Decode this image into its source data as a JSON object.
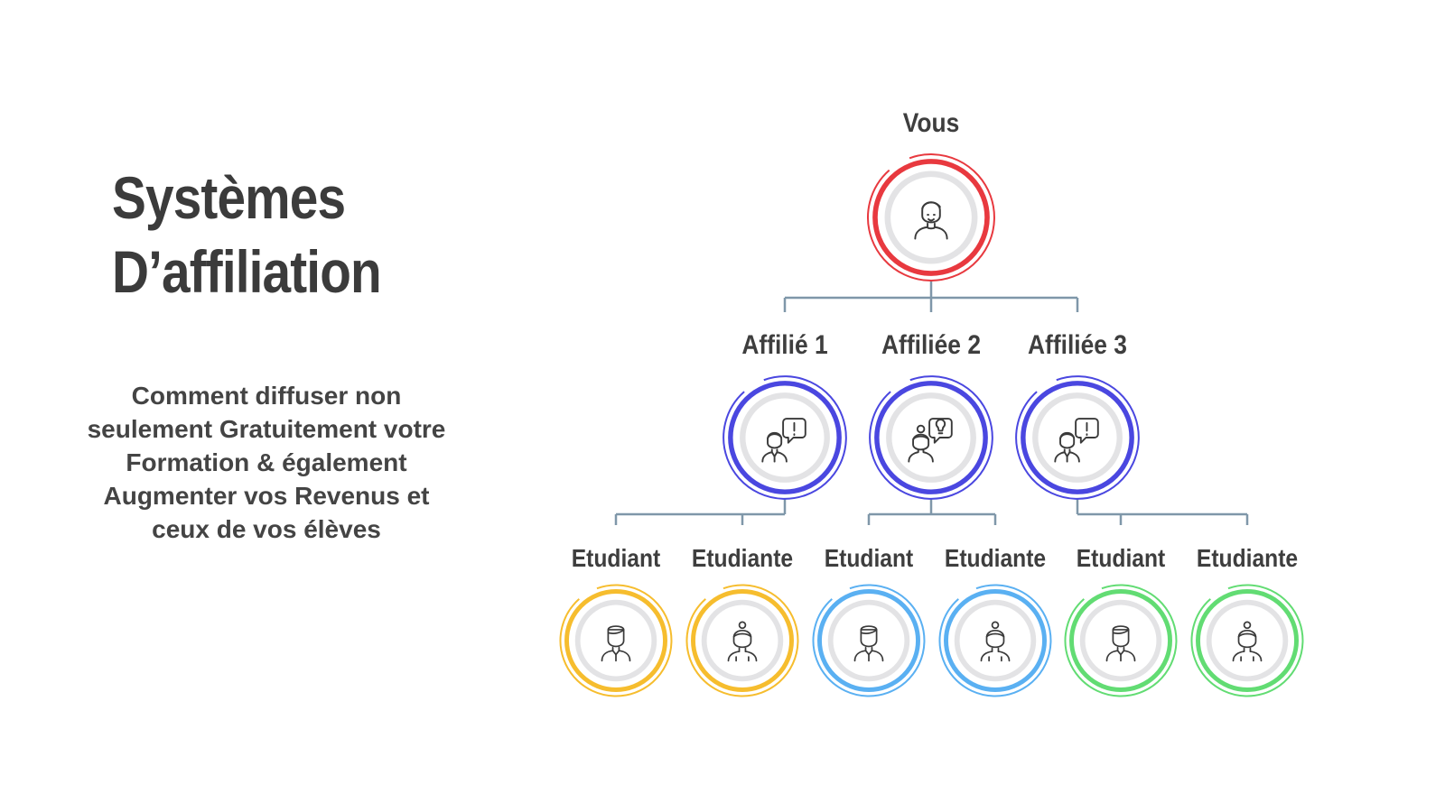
{
  "heading": {
    "title_line1": "Systèmes",
    "title_line2": "D’affiliation",
    "subtitle_lines": [
      "Comment diffuser non",
      "seulement Gratuitement votre",
      "Formation & également",
      "Augmenter vos Revenus et",
      "ceux de vos élèves"
    ]
  },
  "tree": {
    "root": {
      "label": "Vous",
      "color": "#e8393f",
      "icon": "man-icon"
    },
    "affiliates": [
      {
        "label": "Affilié 1",
        "color": "#4a47e0",
        "icon": "man-speech-exclamation-icon"
      },
      {
        "label": "Affiliée 2",
        "color": "#4a47e0",
        "icon": "woman-speech-lightbulb-icon"
      },
      {
        "label": "Affiliée 3",
        "color": "#4a47e0",
        "icon": "man-speech-exclamation-icon"
      }
    ],
    "students": [
      {
        "label": "Etudiant",
        "color": "#f6bd2e",
        "icon": "male-student-icon"
      },
      {
        "label": "Etudiante",
        "color": "#f6bd2e",
        "icon": "female-student-icon"
      },
      {
        "label": "Etudiant",
        "color": "#5ab0f2",
        "icon": "male-student-icon"
      },
      {
        "label": "Etudiante",
        "color": "#5ab0f2",
        "icon": "female-student-icon"
      },
      {
        "label": "Etudiant",
        "color": "#62dc73",
        "icon": "male-student-icon"
      },
      {
        "label": "Etudiante",
        "color": "#62dc73",
        "icon": "female-student-icon"
      }
    ],
    "connector_color": "#7f97a9"
  }
}
